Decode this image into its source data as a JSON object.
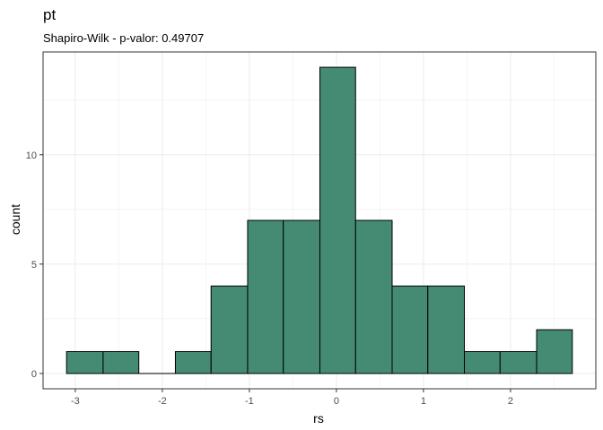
{
  "chart_data": {
    "type": "bar",
    "title": "pt",
    "subtitle": "Shapiro-Wilk - p-valor:  0.49707",
    "xlabel": "rs",
    "ylabel": "count",
    "bin_edges": [
      -3.1,
      -2.68,
      -2.27,
      -1.85,
      -1.44,
      -1.02,
      -0.61,
      -0.19,
      0.22,
      0.64,
      1.05,
      1.47,
      1.88,
      2.3,
      2.71
    ],
    "values": [
      1,
      1,
      0,
      1,
      4,
      7,
      7,
      14,
      7,
      4,
      4,
      1,
      1,
      2
    ],
    "xlim": [
      -3.37,
      2.98
    ],
    "ylim": [
      -0.7,
      14.7
    ],
    "x_ticks": [
      -3,
      -2,
      -1,
      0,
      1,
      2
    ],
    "x_tick_labels": [
      "-3",
      "-2",
      "-1",
      "0",
      "1",
      "2"
    ],
    "y_ticks": [
      0,
      5,
      10
    ],
    "y_tick_labels": [
      "0",
      "5",
      "10"
    ],
    "grid": true,
    "bar_fill": "#458B74",
    "bar_stroke": "#000000",
    "panel_border": "#333333",
    "grid_color": "#ebebeb"
  }
}
